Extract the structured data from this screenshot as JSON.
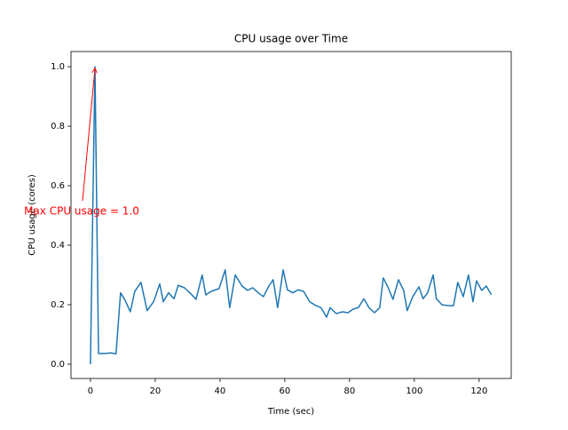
{
  "chart_data": {
    "type": "line",
    "title": "CPU usage over Time",
    "x_label": "Time (sec)",
    "y_label": "CPU usage (cores)",
    "annotation": "Max CPU usage = 1.0",
    "xlim": [
      -6.0,
      129.9
    ],
    "ylim": [
      -0.048,
      1.051
    ],
    "xticks": [
      0,
      20,
      40,
      60,
      80,
      100,
      120
    ],
    "yticks": [
      {
        "value": 0,
        "label": "0.0"
      },
      {
        "value": 0.2,
        "label": "0.2"
      },
      {
        "value": 0.4,
        "label": "0.4"
      },
      {
        "value": 0.6,
        "label": "0.6"
      },
      {
        "value": 0.8,
        "label": "0.8"
      },
      {
        "value": 1.0,
        "label": "1.0"
      }
    ],
    "series": [
      {
        "name": "CPU usage",
        "color": "#1f77b4",
        "x": [
          0,
          1.4,
          2.5,
          4.4,
          6.3,
          7.9,
          9.3,
          10.7,
          12.3,
          13.7,
          15.6,
          17.5,
          19.5,
          21.4,
          22.5,
          24.1,
          25.8,
          27.1,
          29.0,
          30.7,
          32.6,
          34.5,
          35.6,
          37.3,
          39.7,
          41.6,
          43.0,
          44.7,
          46.8,
          48.5,
          50.1,
          51.8,
          53.4,
          55.1,
          56.4,
          57.8,
          59.5,
          60.8,
          62.5,
          64.1,
          65.8,
          67.7,
          69.6,
          71.2,
          72.9,
          74.0,
          75.9,
          77.8,
          79.5,
          81.1,
          82.7,
          84.4,
          86.0,
          87.7,
          89.3,
          90.4,
          91.8,
          93.4,
          95.1,
          96.7,
          97.8,
          99.5,
          101.4,
          102.7,
          104.1,
          105.8,
          106.8,
          108.5,
          110.4,
          112.1,
          113.4,
          115.1,
          116.7,
          118.1,
          119.2,
          120.8,
          122.2,
          123.8
        ],
        "values": [
          0.0,
          1.0,
          0.036,
          0.036,
          0.038,
          0.035,
          0.24,
          0.215,
          0.176,
          0.245,
          0.275,
          0.18,
          0.21,
          0.27,
          0.21,
          0.24,
          0.22,
          0.265,
          0.257,
          0.24,
          0.218,
          0.3,
          0.233,
          0.245,
          0.254,
          0.317,
          0.19,
          0.3,
          0.263,
          0.248,
          0.257,
          0.24,
          0.227,
          0.263,
          0.284,
          0.19,
          0.317,
          0.25,
          0.24,
          0.25,
          0.245,
          0.21,
          0.197,
          0.19,
          0.158,
          0.19,
          0.17,
          0.176,
          0.173,
          0.185,
          0.19,
          0.22,
          0.19,
          0.173,
          0.19,
          0.29,
          0.26,
          0.218,
          0.284,
          0.248,
          0.18,
          0.227,
          0.26,
          0.22,
          0.24,
          0.3,
          0.22,
          0.2,
          0.197,
          0.197,
          0.275,
          0.227,
          0.3,
          0.21,
          0.28,
          0.248,
          0.263,
          0.233
        ]
      }
    ]
  }
}
